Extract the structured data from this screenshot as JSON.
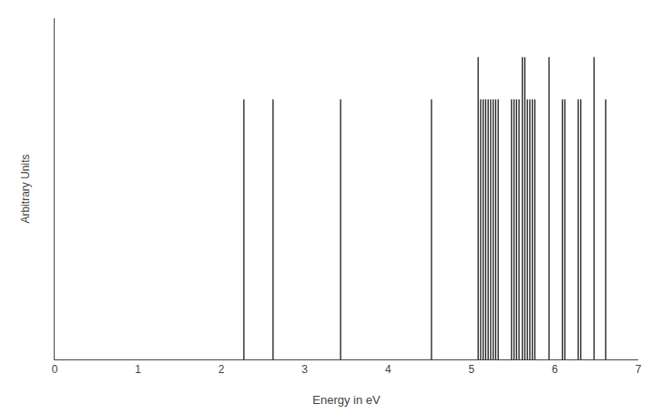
{
  "chart_data": {
    "type": "stick",
    "xlabel": "Energy in eV",
    "ylabel": "Arbitrary Units",
    "xlim": [
      0,
      7
    ],
    "ylim": [
      0,
      1.05
    ],
    "xticks": [
      0,
      1,
      2,
      3,
      4,
      5,
      6,
      7
    ],
    "tick_labels": "x",
    "grid": false,
    "color": "#1a1a1a",
    "x": [
      2.27,
      2.62,
      3.43,
      4.52,
      5.08,
      5.11,
      5.14,
      5.17,
      5.2,
      5.23,
      5.26,
      5.29,
      5.32,
      5.48,
      5.51,
      5.54,
      5.57,
      5.61,
      5.64,
      5.67,
      5.7,
      5.73,
      5.76,
      5.93,
      6.09,
      6.12,
      6.28,
      6.31,
      6.47,
      6.61
    ],
    "values": [
      0.8,
      0.8,
      0.8,
      0.8,
      0.93,
      0.8,
      0.8,
      0.8,
      0.8,
      0.8,
      0.8,
      0.8,
      0.8,
      0.8,
      0.8,
      0.8,
      0.8,
      0.93,
      0.93,
      0.8,
      0.8,
      0.8,
      0.8,
      0.93,
      0.8,
      0.8,
      0.8,
      0.8,
      0.93,
      0.8
    ]
  }
}
